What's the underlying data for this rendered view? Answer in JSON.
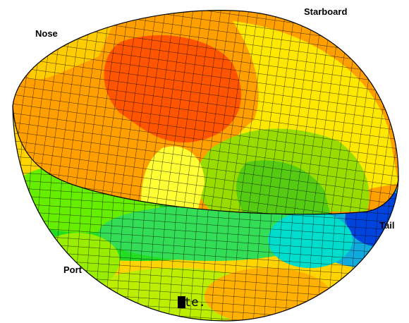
{
  "labels": {
    "nose": "Nose",
    "starboard": "Starboard",
    "tail": "Tail",
    "port": "Port"
  },
  "footer_text": "te."
}
